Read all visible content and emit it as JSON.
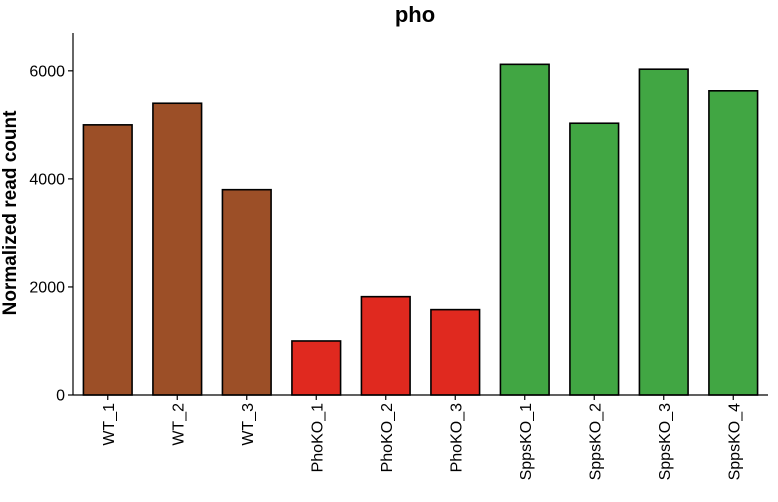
{
  "chart_data": {
    "type": "bar",
    "title": "pho",
    "xlabel": "",
    "ylabel": "Normalized read count",
    "ylim": [
      0,
      6700
    ],
    "yticks": [
      0,
      2000,
      4000,
      6000
    ],
    "categories": [
      "WT_1",
      "WT_2",
      "WT_3",
      "PhoKO_1",
      "PhoKO_2",
      "PhoKO_3",
      "SppsKO_1",
      "SppsKO_2",
      "SppsKO_3",
      "SppsKO_4"
    ],
    "values": [
      5000,
      5400,
      3800,
      1000,
      1820,
      1580,
      6120,
      5030,
      6030,
      5630
    ],
    "colors": [
      "#9c4f27",
      "#9c4f27",
      "#9c4f27",
      "#e0291f",
      "#e0291f",
      "#e0291f",
      "#41a643",
      "#41a643",
      "#41a643",
      "#41a643"
    ],
    "grid": false,
    "legend": "none"
  }
}
